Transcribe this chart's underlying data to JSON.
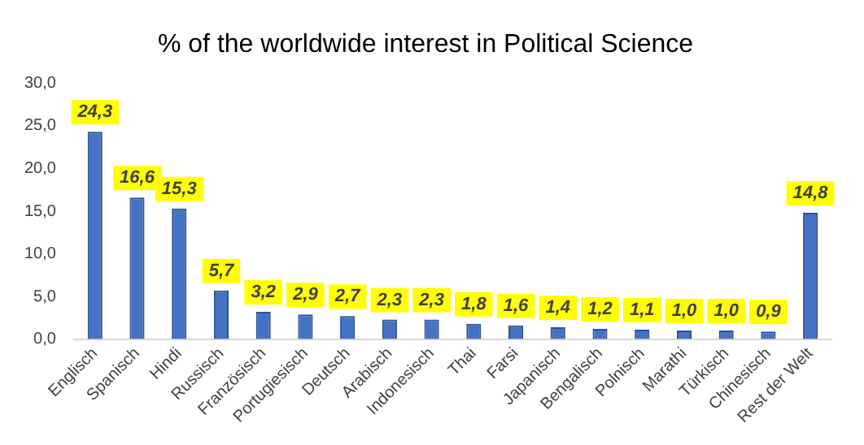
{
  "chart_data": {
    "type": "bar",
    "title": "% of the worldwide interest in Political Science",
    "categories": [
      "Englisch",
      "Spanisch",
      "Hindi",
      "Russisch",
      "Französisch",
      "Portugiesisch",
      "Deutsch",
      "Arabisch",
      "Indonesisch",
      "Thai",
      "Farsi",
      "Japanisch",
      "Bengalisch",
      "Polnisch",
      "Marathi",
      "Türkisch",
      "Chinesisch",
      "Rest der Welt"
    ],
    "values": [
      24.3,
      16.6,
      15.3,
      5.7,
      3.2,
      2.9,
      2.7,
      2.3,
      2.3,
      1.8,
      1.6,
      1.4,
      1.2,
      1.1,
      1.0,
      1.0,
      0.9,
      14.8
    ],
    "value_labels": [
      "24,3",
      "16,6",
      "15,3",
      "5,7",
      "3,2",
      "2,9",
      "2,7",
      "2,3",
      "2,3",
      "1,8",
      "1,6",
      "1,4",
      "1,2",
      "1,1",
      "1,0",
      "1,0",
      "0,9",
      "14,8"
    ],
    "color": "#4472c4",
    "ylim": [
      0,
      30
    ],
    "yticks": [
      {
        "value": 0,
        "label": "0,0"
      },
      {
        "value": 5,
        "label": "5,0"
      },
      {
        "value": 10,
        "label": "10,0"
      },
      {
        "value": 15,
        "label": "15,0"
      },
      {
        "value": 20,
        "label": "20,0"
      },
      {
        "value": 25,
        "label": "25,0"
      },
      {
        "value": 30,
        "label": "30,0"
      }
    ],
    "grid": false,
    "legend": false
  }
}
